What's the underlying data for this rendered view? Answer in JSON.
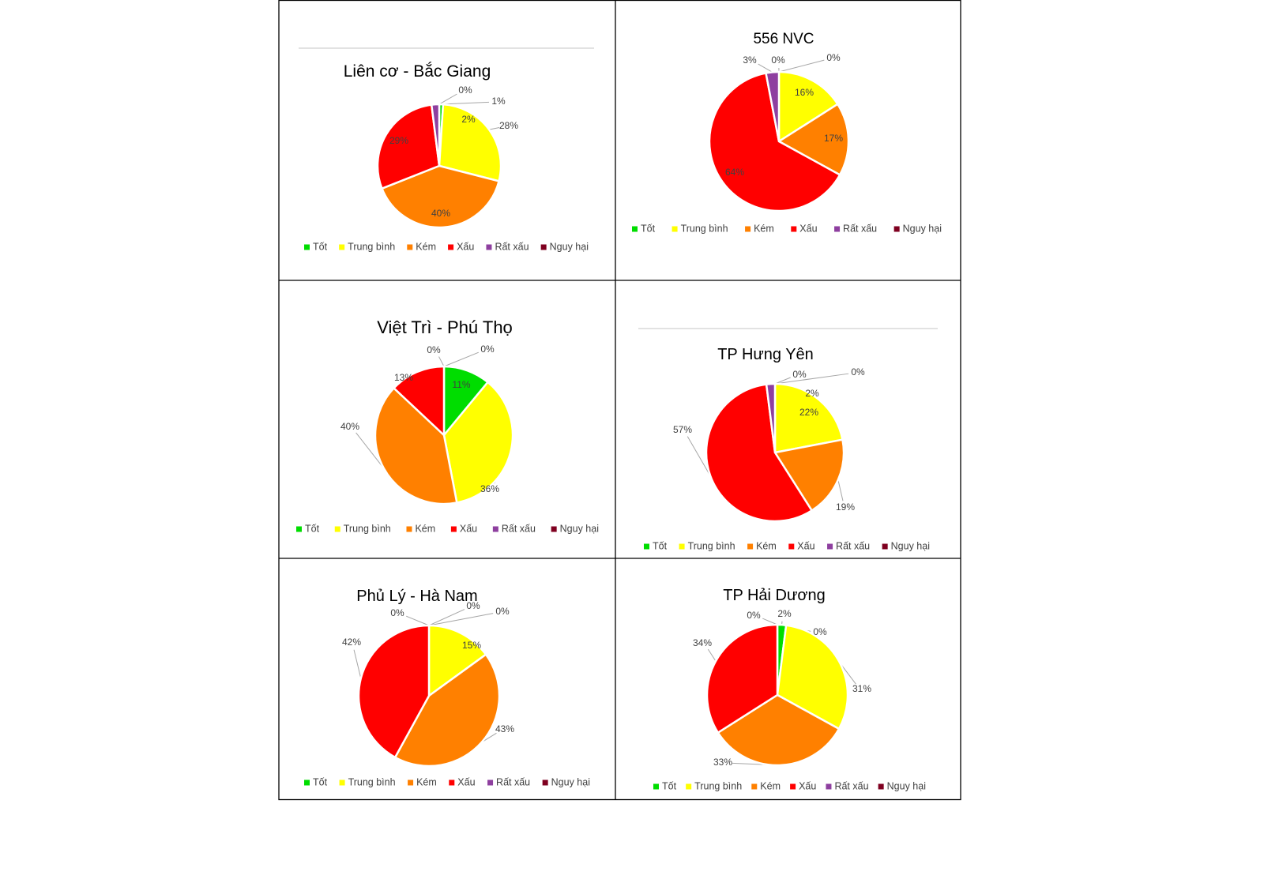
{
  "legend": [
    "Tốt",
    "Trung bình",
    "Kém",
    "Xấu",
    "Rất xấu",
    "Nguy hại"
  ],
  "colors": [
    "#00dd00",
    "#ffff00",
    "#ff8000",
    "#ff0000",
    "#8e3f9f",
    "#7f0020"
  ],
  "chart_data": [
    {
      "type": "pie",
      "title": "Liên cơ - Bắc Giang",
      "categories": [
        "Tốt",
        "Trung bình",
        "Kém",
        "Xấu",
        "Rất xấu",
        "Nguy hại"
      ],
      "values": [
        1,
        28,
        40,
        29,
        2,
        0
      ],
      "labels": [
        "1%",
        "28%",
        "40%",
        "29%",
        "2%",
        "0%"
      ],
      "legend_position": "bottom"
    },
    {
      "type": "pie",
      "title": "556 NVC",
      "categories": [
        "Tốt",
        "Trung bình",
        "Kém",
        "Xấu",
        "Rất xấu",
        "Nguy hại"
      ],
      "values": [
        0,
        16,
        17,
        64,
        3,
        0
      ],
      "labels": [
        "0%",
        "16%",
        "17%",
        "64%",
        "3%",
        "0%"
      ],
      "legend_position": "bottom"
    },
    {
      "type": "pie",
      "title": "Việt Trì - Phú Thọ",
      "categories": [
        "Tốt",
        "Trung bình",
        "Kém",
        "Xấu",
        "Rất xấu",
        "Nguy hại"
      ],
      "values": [
        11,
        36,
        40,
        13,
        0,
        0
      ],
      "labels": [
        "11%",
        "36%",
        "40%",
        "13%",
        "0%",
        "0%"
      ],
      "legend_position": "bottom"
    },
    {
      "type": "pie",
      "title": "TP Hưng Yên",
      "categories": [
        "Tốt",
        "Trung bình",
        "Kém",
        "Xấu",
        "Rất xấu",
        "Nguy hại"
      ],
      "values": [
        0,
        22,
        19,
        57,
        2,
        0
      ],
      "labels": [
        "0%",
        "22%",
        "19%",
        "57%",
        "2%",
        "0%"
      ],
      "legend_position": "bottom"
    },
    {
      "type": "pie",
      "title": "Phủ Lý - Hà Nam",
      "categories": [
        "Tốt",
        "Trung bình",
        "Kém",
        "Xấu",
        "Rất xấu",
        "Nguy hại"
      ],
      "values": [
        0,
        15,
        43,
        42,
        0,
        0
      ],
      "labels": [
        "0%",
        "15%",
        "43%",
        "42%",
        "0%",
        "0%"
      ],
      "legend_position": "bottom"
    },
    {
      "type": "pie",
      "title": "TP Hải Dương",
      "categories": [
        "Tốt",
        "Trung bình",
        "Kém",
        "Xấu",
        "Rất xấu",
        "Nguy hại"
      ],
      "values": [
        2,
        31,
        33,
        34,
        0,
        0
      ],
      "labels": [
        "2%",
        "31%",
        "33%",
        "34%",
        "0%",
        "0%"
      ],
      "legend_position": "bottom"
    }
  ]
}
